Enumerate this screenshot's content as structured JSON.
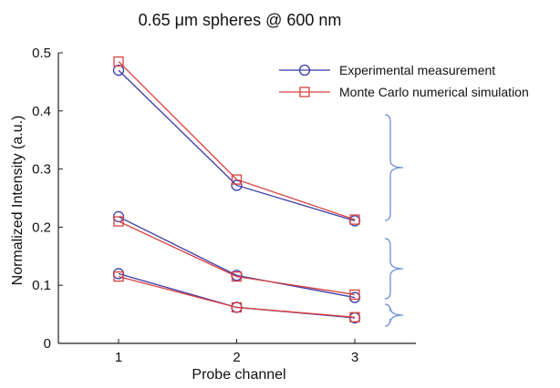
{
  "chart_data": {
    "type": "line",
    "title": "0.65 μm spheres @ 600 nm",
    "xlabel": "Probe channel",
    "ylabel": "Normalized Intensity (a.u.)",
    "x": [
      1,
      2,
      3
    ],
    "xticks": [
      "1",
      "2",
      "3"
    ],
    "yticks": [
      "0",
      "0.1",
      "0.2",
      "0.3",
      "0.4",
      "0.5"
    ],
    "xlim": [
      0.5,
      3.5
    ],
    "ylim": [
      0,
      0.5
    ],
    "grid": false,
    "legend_position": "top-right",
    "series": [
      {
        "name": "Experimental measurement",
        "marker": "circle",
        "color": "#3b3ba8",
        "groups": [
          [
            0.47,
            0.272,
            0.211
          ],
          [
            0.218,
            0.117,
            0.079
          ],
          [
            0.12,
            0.062,
            0.044
          ]
        ]
      },
      {
        "name": "Monte Carlo numerical simulation",
        "marker": "square",
        "color": "#d9403f",
        "groups": [
          [
            0.485,
            0.282,
            0.213
          ],
          [
            0.21,
            0.115,
            0.084
          ],
          [
            0.115,
            0.062,
            0.045
          ]
        ]
      }
    ],
    "brace_color": "#6f8fd6"
  }
}
